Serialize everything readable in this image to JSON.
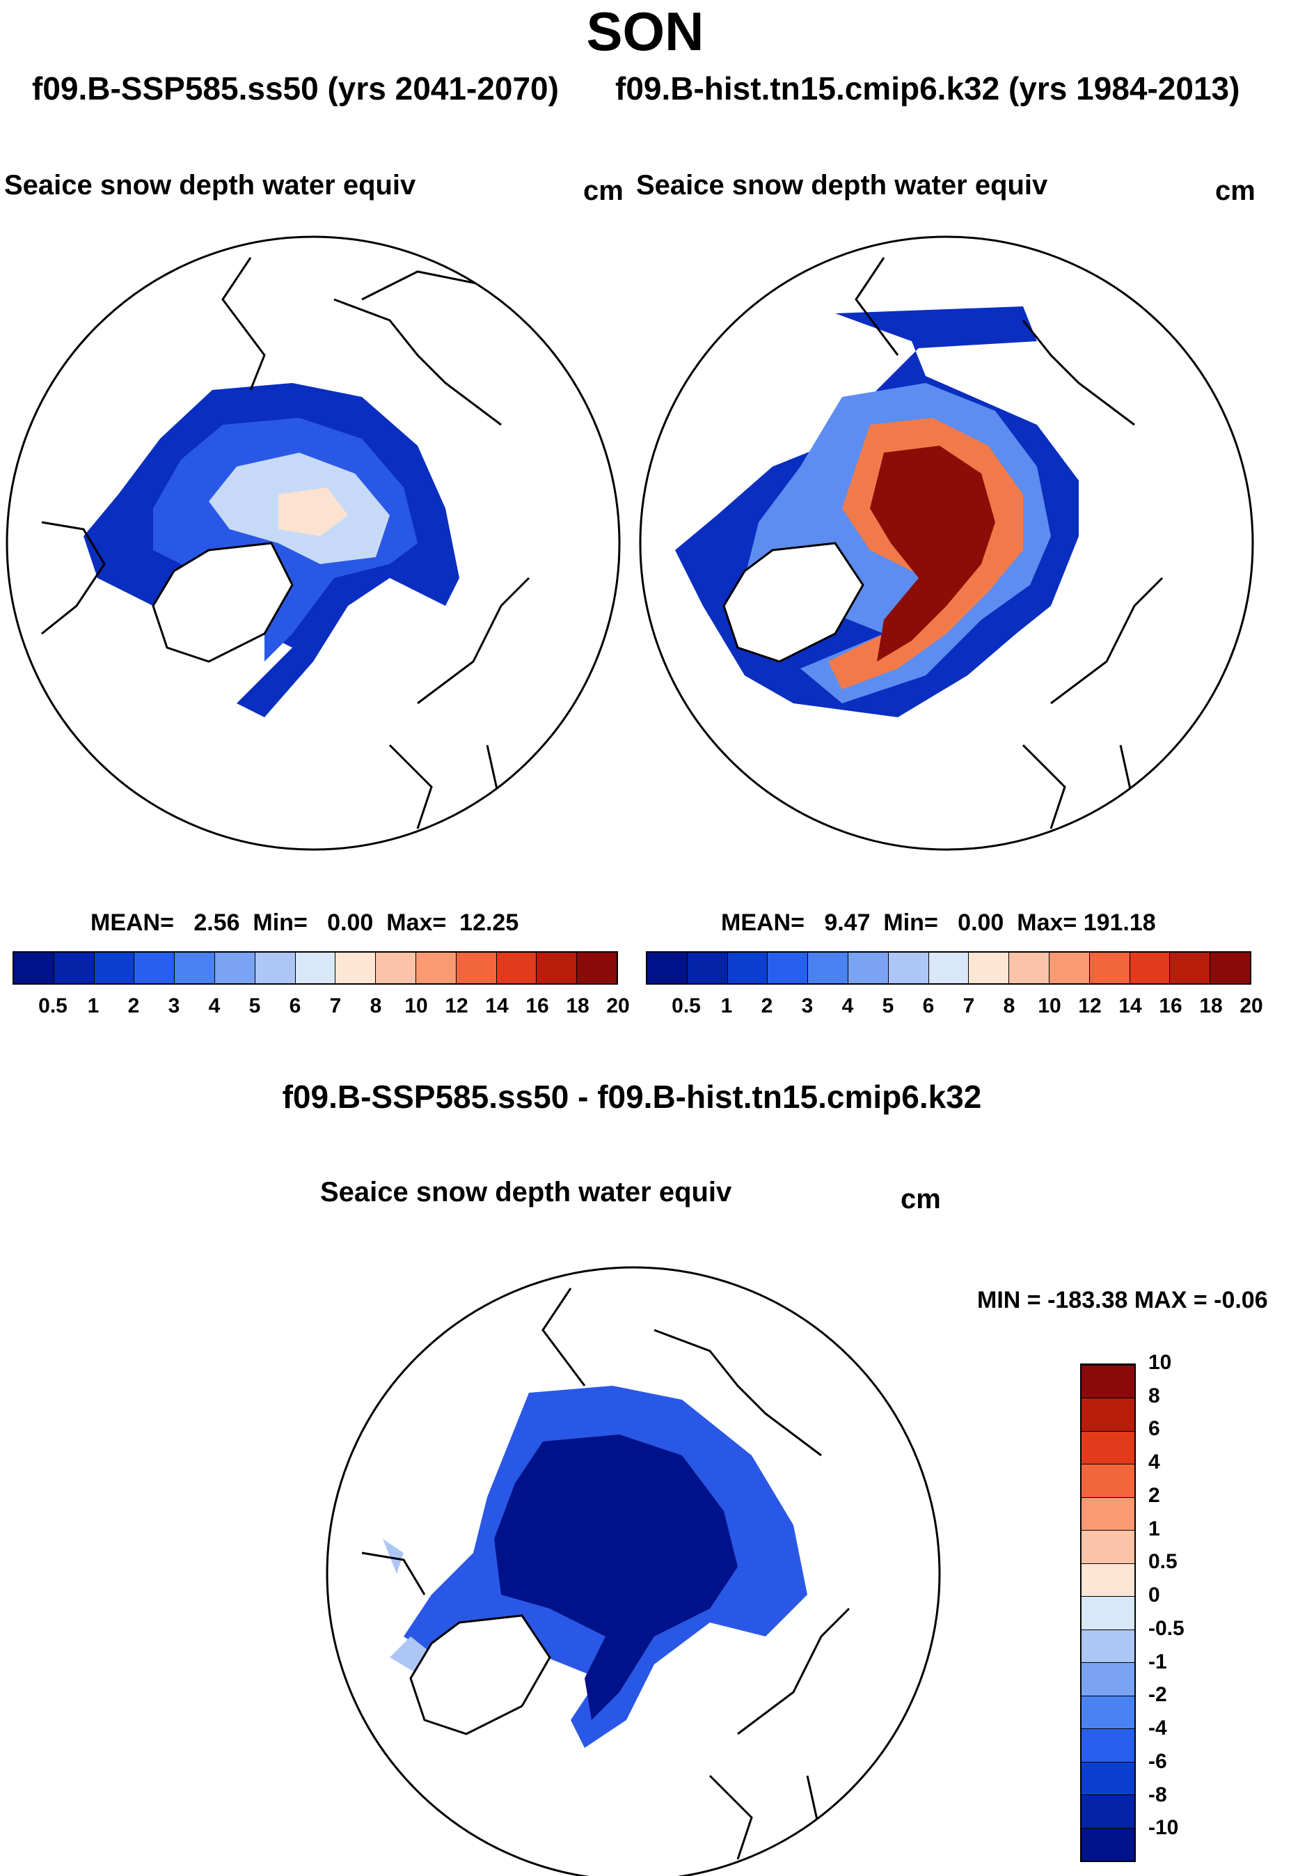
{
  "title": "SON",
  "subtitle_left": "f09.B-SSP585.ss50 (yrs 2041-2070)",
  "subtitle_right": "f09.B-hist.tn15.cmip6.k32 (yrs 1984-2013)",
  "panel1": {
    "title": "Seaice snow depth water equiv",
    "units": "cm",
    "stats": {
      "mean_label": "MEAN=",
      "mean": "2.56",
      "min_label": "Min=",
      "min": "0.00",
      "max_label": "Max=",
      "max": "12.25"
    }
  },
  "panel2": {
    "title": "Seaice snow depth water equiv",
    "units": "cm",
    "stats": {
      "mean_label": "MEAN=",
      "mean": "9.47",
      "min_label": "Min=",
      "min": "0.00",
      "max_label": "Max=",
      "max": "191.18"
    }
  },
  "diff": {
    "title": "f09.B-SSP585.ss50 - f09.B-hist.tn15.cmip6.k32",
    "panel_title": "Seaice snow depth water equiv",
    "units": "cm",
    "minmax": "MIN = -183.38 MAX =  -0.06"
  },
  "colorbar_main": {
    "labels": [
      "0.5",
      "1",
      "2",
      "3",
      "4",
      "5",
      "6",
      "7",
      "8",
      "10",
      "12",
      "14",
      "16",
      "18",
      "20"
    ],
    "colors": [
      "#00128a",
      "#0324a8",
      "#0b3fd0",
      "#2660ec",
      "#4a82f2",
      "#7aa3f4",
      "#aec6f5",
      "#d8e8f8",
      "#fde6d4",
      "#fbc4a8",
      "#f99a72",
      "#f3663c",
      "#e23b1c",
      "#b81c0a",
      "#8a0a0a"
    ]
  },
  "colorbar_diff": {
    "labels": [
      "-10",
      "-8",
      "-6",
      "-4",
      "-2",
      "-1",
      "-0.5",
      "0",
      "0.5",
      "1",
      "2",
      "4",
      "6",
      "8",
      "10"
    ],
    "colors": [
      "#00128a",
      "#0324a8",
      "#0b3fd0",
      "#2660ec",
      "#4a82f2",
      "#7aa3f4",
      "#aec6f5",
      "#d8e8f8",
      "#fde6d4",
      "#fbc4a8",
      "#f99a72",
      "#f3663c",
      "#e23b1c",
      "#b81c0a",
      "#8a0a0a"
    ]
  }
}
